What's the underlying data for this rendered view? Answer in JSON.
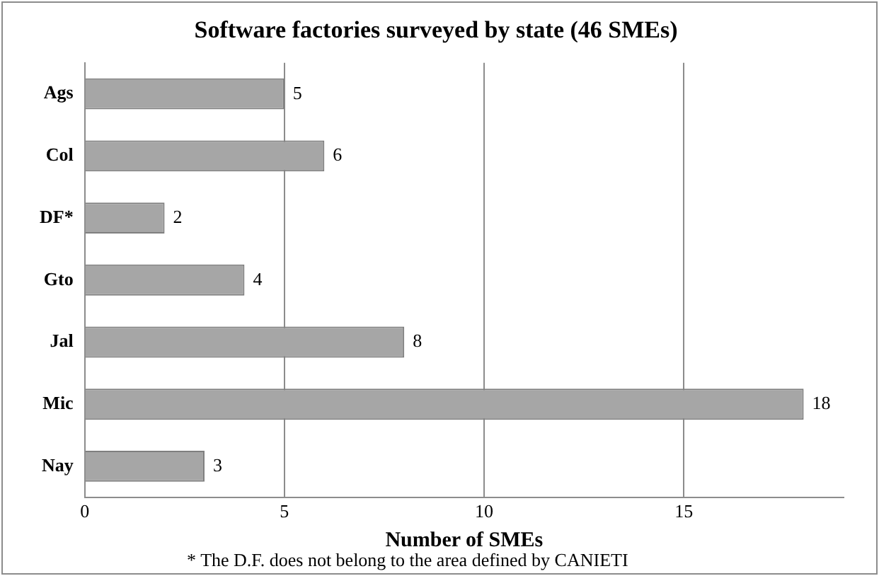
{
  "chart_data": {
    "type": "bar",
    "orientation": "horizontal",
    "title": "Software factories surveyed by state (46 SMEs)",
    "xlabel": "Number of SMEs",
    "categories": [
      "Ags",
      "Col",
      "DF*",
      "Gto",
      "Jal",
      "Mic",
      "Nay"
    ],
    "values": [
      5,
      6,
      2,
      4,
      8,
      18,
      3
    ],
    "color": "#a6a6a6",
    "xlim": [
      0,
      19
    ],
    "xticks": [
      0,
      5,
      10,
      15
    ],
    "grid": "x",
    "data_labels": true,
    "annotations": [
      "* The D.F. does not belong to the area defined by CANIETI"
    ]
  }
}
